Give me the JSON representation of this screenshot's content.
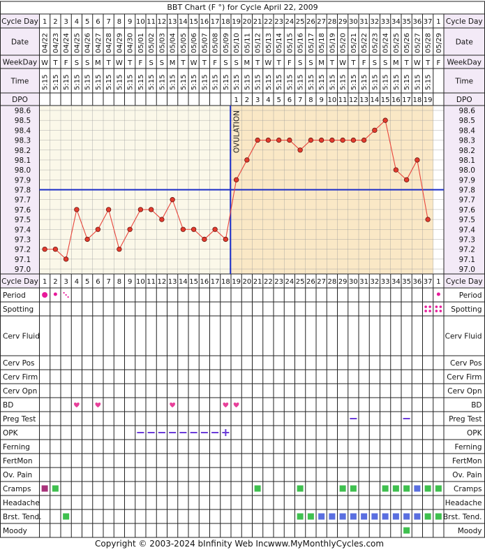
{
  "header": {
    "title": "BBT Chart (F °) for Cycle April 22, 2009"
  },
  "footer": {
    "copyright": "Copyright © 2003-2024 bInfinity Web Inc.",
    "site": "www.MyMonthlyCycles.com"
  },
  "labels": {
    "cycle_day": "Cycle Day",
    "date": "Date",
    "weekday": "WeekDay",
    "time": "Time",
    "dpo": "DPO",
    "ovulation": "OVULATION"
  },
  "rows": [
    "Period",
    "Spotting",
    "Cerv Fluid",
    "Cerv Pos",
    "Cerv Firm",
    "Cerv Opn",
    "BD",
    "Preg Test",
    "OPK",
    "Ferning",
    "FertMon",
    "Ov. Pain",
    "Cramps",
    "Headache",
    "Brst. Tend.",
    "Moody"
  ],
  "cycle_days": [
    "1",
    "2",
    "3",
    "4",
    "5",
    "6",
    "7",
    "8",
    "9",
    "10",
    "11",
    "12",
    "13",
    "14",
    "15",
    "16",
    "17",
    "18",
    "19",
    "20",
    "21",
    "22",
    "23",
    "24",
    "25",
    "26",
    "27",
    "28",
    "29",
    "30",
    "31",
    "32",
    "33",
    "34",
    "35",
    "36",
    "37",
    "1"
  ],
  "dates": [
    "04/22",
    "04/23",
    "04/24",
    "04/25",
    "04/26",
    "04/27",
    "04/28",
    "04/29",
    "04/30",
    "05/01",
    "05/02",
    "05/03",
    "05/04",
    "05/05",
    "05/06",
    "05/07",
    "05/08",
    "05/09",
    "05/10",
    "05/11",
    "05/12",
    "05/13",
    "05/14",
    "05/15",
    "05/16",
    "05/17",
    "05/18",
    "05/19",
    "05/20",
    "05/21",
    "05/22",
    "05/23",
    "05/24",
    "05/25",
    "05/26",
    "05/27",
    "05/28",
    "05/29"
  ],
  "weekdays": [
    "W",
    "T",
    "F",
    "S",
    "S",
    "M",
    "T",
    "W",
    "T",
    "F",
    "S",
    "S",
    "M",
    "T",
    "W",
    "T",
    "F",
    "S",
    "S",
    "M",
    "T",
    "W",
    "T",
    "F",
    "S",
    "S",
    "M",
    "T",
    "W",
    "T",
    "F",
    "S",
    "S",
    "M",
    "T",
    "W",
    "T",
    "F"
  ],
  "times": [
    "5:15",
    "5:15",
    "5:15",
    "5:15",
    "5:15",
    "5:15",
    "5:15",
    "5:15",
    "5:15",
    "5:15",
    "5:15",
    "5:15",
    "5:15",
    "5:15",
    "5:15",
    "5:15",
    "5:15",
    "5:15",
    "5:15",
    "5:15",
    "5:15",
    "5:15",
    "5:15",
    "5:15",
    "5:15",
    "5:15",
    "5:15",
    "5:15",
    "5:15",
    "5:15",
    "5:15",
    "5:15",
    "5:15",
    "5:15",
    "5:15",
    "5:15",
    "5:15",
    ""
  ],
  "dpo": [
    "",
    "",
    "",
    "",
    "",
    "",
    "",
    "",
    "",
    "",
    "",
    "",
    "",
    "",
    "",
    "",
    "",
    "",
    "1",
    "2",
    "3",
    "4",
    "5",
    "6",
    "7",
    "8",
    "9",
    "10",
    "11",
    "12",
    "13",
    "14",
    "15",
    "16",
    "17",
    "18",
    "19",
    ""
  ],
  "colors": {
    "line": "#e8453c",
    "point": "#e23b2e",
    "coverline": "#1a2cc7",
    "ovulation": "#1a2cc7",
    "pre_bg": "#fbf8e9",
    "post_bg": "#fae8c6",
    "header_bg": "#f3eaf7",
    "grid": "#222222",
    "period": "#e8199a",
    "bd": "#e8409a",
    "purple": "#6a3bd8",
    "green": "#3fc04f",
    "blue": "#5a6fe0",
    "maroon": "#a8327a"
  },
  "chart_data": {
    "type": "line",
    "title": "BBT Chart (F °) for Cycle April 22, 2009",
    "x": [
      1,
      2,
      3,
      4,
      5,
      6,
      7,
      8,
      9,
      10,
      11,
      12,
      13,
      14,
      15,
      16,
      17,
      18,
      19,
      20,
      21,
      22,
      23,
      24,
      25,
      26,
      27,
      28,
      29,
      30,
      31,
      32,
      33,
      34,
      35,
      36,
      37
    ],
    "series": [
      {
        "values": [
          97.2,
          97.2,
          97.1,
          97.6,
          97.3,
          97.4,
          97.6,
          97.2,
          97.4,
          97.6,
          97.6,
          97.5,
          97.7,
          97.4,
          97.4,
          97.3,
          97.4,
          97.3,
          97.9,
          98.1,
          98.3,
          98.3,
          98.3,
          98.3,
          98.2,
          98.3,
          98.3,
          98.3,
          98.3,
          98.3,
          98.3,
          98.4,
          98.5,
          98.0,
          97.9,
          98.1,
          97.5
        ]
      }
    ],
    "coverline": 97.8,
    "ovulation_day": 18,
    "ylim": [
      97.0,
      98.6
    ],
    "yticks": [
      "98.6",
      "98.5",
      "98.4",
      "98.3",
      "98.2",
      "98.1",
      "98.0",
      "97.9",
      "97.8",
      "97.7",
      "97.6",
      "97.5",
      "97.4",
      "97.3",
      "97.2",
      "97.1",
      "97.0"
    ],
    "grid": true,
    "symptoms": {
      "Period": [
        {
          "day": 1,
          "mark": "dot-large"
        },
        {
          "day": 2,
          "mark": "dot-small"
        },
        {
          "day": 3,
          "mark": "dots-diagonal"
        },
        {
          "day": 38,
          "mark": "dot-small"
        }
      ],
      "Spotting": [
        {
          "day": 37,
          "mark": "dots-four"
        },
        {
          "day": 38,
          "mark": "dots-four"
        }
      ],
      "BD": [
        {
          "day": 4,
          "mark": "heart"
        },
        {
          "day": 6,
          "mark": "heart"
        },
        {
          "day": 13,
          "mark": "heart"
        },
        {
          "day": 18,
          "mark": "heart"
        },
        {
          "day": 19,
          "mark": "heart"
        }
      ],
      "Preg Test": [
        {
          "day": 30,
          "mark": "minus"
        },
        {
          "day": 35,
          "mark": "minus"
        }
      ],
      "OPK": [
        {
          "day": 10,
          "mark": "minus"
        },
        {
          "day": 11,
          "mark": "minus"
        },
        {
          "day": 12,
          "mark": "minus"
        },
        {
          "day": 13,
          "mark": "minus"
        },
        {
          "day": 14,
          "mark": "minus"
        },
        {
          "day": 15,
          "mark": "minus"
        },
        {
          "day": 16,
          "mark": "minus"
        },
        {
          "day": 17,
          "mark": "minus"
        },
        {
          "day": 18,
          "mark": "plus"
        }
      ],
      "Cramps": [
        {
          "day": 1,
          "mark": "sq-maroon"
        },
        {
          "day": 2,
          "mark": "sq-green"
        },
        {
          "day": 21,
          "mark": "sq-green"
        },
        {
          "day": 25,
          "mark": "sq-green"
        },
        {
          "day": 29,
          "mark": "sq-green"
        },
        {
          "day": 30,
          "mark": "sq-green"
        },
        {
          "day": 33,
          "mark": "sq-green"
        },
        {
          "day": 34,
          "mark": "sq-green"
        },
        {
          "day": 35,
          "mark": "sq-green"
        },
        {
          "day": 36,
          "mark": "sq-blue"
        },
        {
          "day": 37,
          "mark": "sq-green"
        },
        {
          "day": 38,
          "mark": "sq-green"
        }
      ],
      "Brst. Tend.": [
        {
          "day": 3,
          "mark": "sq-green"
        },
        {
          "day": 25,
          "mark": "sq-green"
        },
        {
          "day": 26,
          "mark": "sq-green"
        },
        {
          "day": 27,
          "mark": "sq-blue"
        },
        {
          "day": 28,
          "mark": "sq-blue"
        },
        {
          "day": 29,
          "mark": "sq-blue"
        },
        {
          "day": 30,
          "mark": "sq-blue"
        },
        {
          "day": 31,
          "mark": "sq-blue"
        },
        {
          "day": 32,
          "mark": "sq-blue"
        },
        {
          "day": 33,
          "mark": "sq-blue"
        },
        {
          "day": 34,
          "mark": "sq-blue"
        },
        {
          "day": 35,
          "mark": "sq-blue"
        },
        {
          "day": 36,
          "mark": "sq-blue"
        },
        {
          "day": 37,
          "mark": "sq-green"
        },
        {
          "day": 38,
          "mark": "sq-green"
        }
      ],
      "Moody": [
        {
          "day": 35,
          "mark": "sq-green"
        }
      ]
    }
  }
}
